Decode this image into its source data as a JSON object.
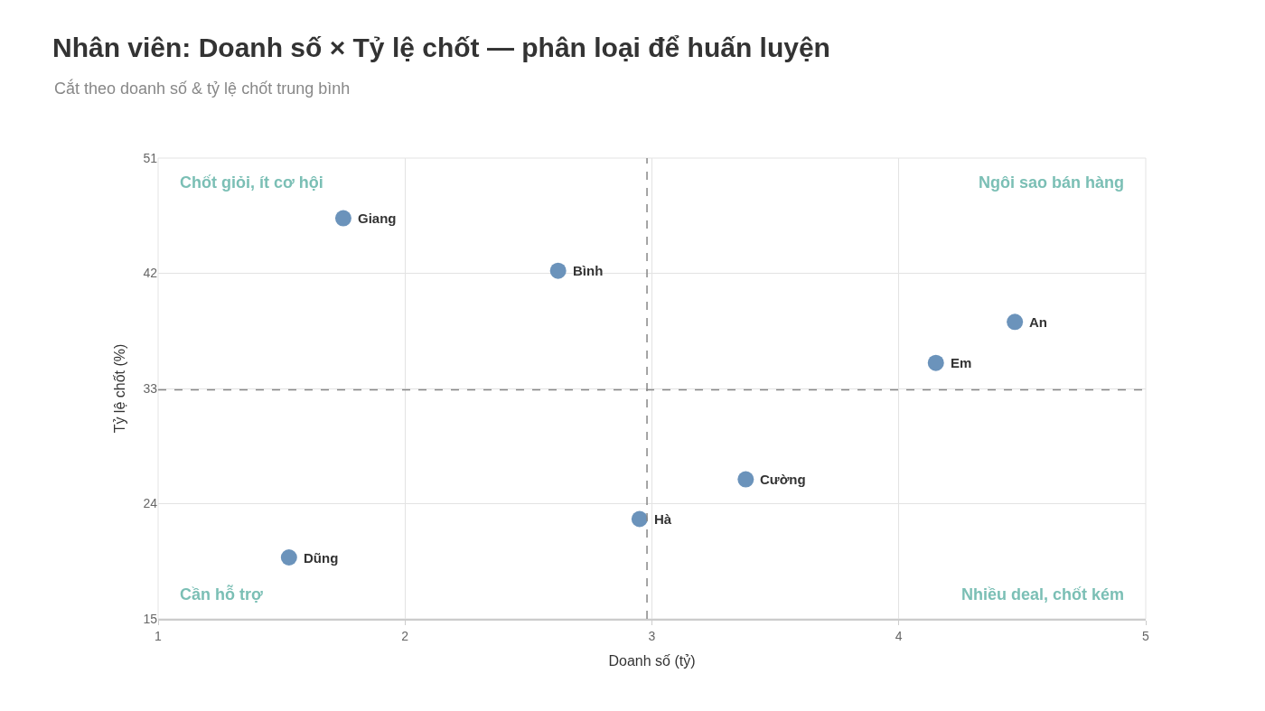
{
  "chart_data": {
    "type": "scatter",
    "title": "Nhân viên: Doanh số × Tỷ lệ chốt — phân loại để huấn luyện",
    "subtitle": "Cắt theo doanh số & tỷ lệ chốt trung bình",
    "xlabel": "Doanh số (tỷ)",
    "ylabel": "Tỷ lệ chốt (%)",
    "x": [
      4.47,
      2.62,
      3.38,
      1.53,
      4.15,
      1.75,
      2.95
    ],
    "series": [
      {
        "color": "#6b93bb",
        "values": [
          38.2,
          42.2,
          25.9,
          19.8,
          35.0,
          46.3,
          22.8
        ]
      }
    ],
    "xlim": [
      1,
      5
    ],
    "xticks": [
      1,
      2,
      3,
      4,
      5
    ],
    "ylim": [
      15,
      51
    ],
    "yticks": [
      15,
      24,
      33,
      42,
      51
    ],
    "grid": true,
    "legend": false,
    "marker": "circle",
    "ref_lines": [
      {
        "axis": "x",
        "value": 2.98,
        "color": "#888888",
        "line_style": "dashed"
      },
      {
        "axis": "y",
        "value": 32.9,
        "color": "#888888",
        "line_style": "dashed"
      }
    ],
    "annotations": [
      {
        "text": "An",
        "x": 4.47,
        "y": 38.2
      },
      {
        "text": "Bình",
        "x": 2.62,
        "y": 42.2
      },
      {
        "text": "Cường",
        "x": 3.38,
        "y": 25.9
      },
      {
        "text": "Dũng",
        "x": 1.53,
        "y": 19.8
      },
      {
        "text": "Em",
        "x": 4.15,
        "y": 35.0
      },
      {
        "text": "Giang",
        "x": 1.75,
        "y": 46.3
      },
      {
        "text": "Hà",
        "x": 2.95,
        "y": 22.8
      },
      "Chốt giỏi, ít cơ hội",
      "Ngôi sao bán hàng",
      "Cần hỗ trợ",
      "Nhiều deal, chốt kém"
    ]
  }
}
